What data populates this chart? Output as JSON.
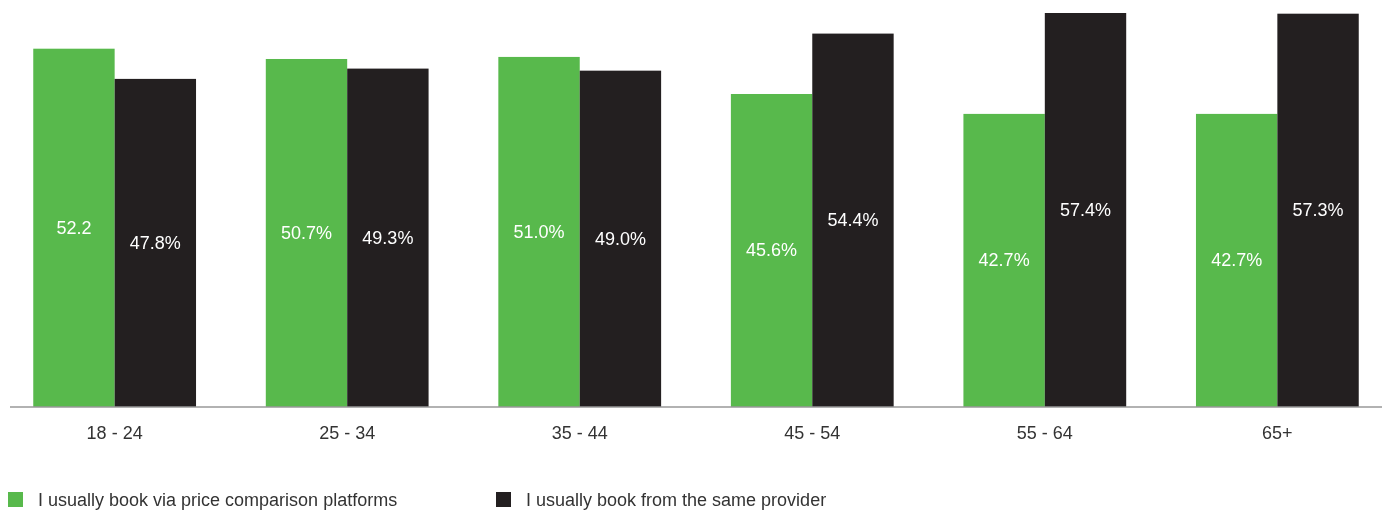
{
  "chart_data": {
    "type": "bar",
    "categories": [
      "18 - 24",
      "25 - 34",
      "35 - 44",
      "45 - 54",
      "55 - 64",
      "65+"
    ],
    "series": [
      {
        "name": "I usually book via price comparison platforms",
        "color": "#58b94c",
        "values": [
          52.2,
          50.7,
          51.0,
          45.6,
          42.7,
          42.7
        ],
        "value_labels": [
          "52.2",
          "50.7%",
          "51.0%",
          "45.6%",
          "42.7%",
          "42.7%"
        ]
      },
      {
        "name": "I usually book from the same provider",
        "color": "#231f20",
        "values": [
          47.8,
          49.3,
          49.0,
          54.4,
          57.4,
          57.3
        ],
        "value_labels": [
          "47.8%",
          "49.3%",
          "49.0%",
          "54.4%",
          "57.4%",
          "57.3%"
        ]
      }
    ],
    "legend": "bottom left"
  }
}
